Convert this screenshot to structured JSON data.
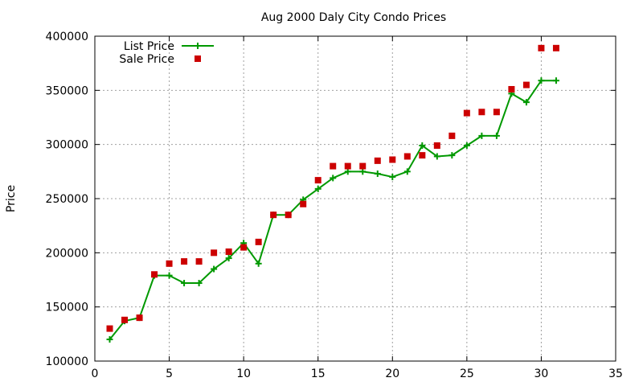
{
  "chart_data": {
    "type": "line",
    "title": "Aug 2000 Daly City Condo Prices",
    "xlabel": "",
    "ylabel": "Price",
    "xlim": [
      0,
      35
    ],
    "ylim": [
      100000,
      400000
    ],
    "xticks": [
      0,
      5,
      10,
      15,
      20,
      25,
      30,
      35
    ],
    "yticks": [
      100000,
      150000,
      200000,
      250000,
      300000,
      350000,
      400000
    ],
    "grid": true,
    "legend_position": "top-left",
    "series": [
      {
        "name": "List Price",
        "style": "line-with-plus-markers",
        "color": "#009900",
        "x": [
          1,
          2,
          3,
          4,
          5,
          6,
          7,
          8,
          9,
          10,
          11,
          12,
          13,
          14,
          15,
          16,
          17,
          18,
          19,
          20,
          21,
          22,
          23,
          24,
          25,
          26,
          27,
          28,
          29,
          30,
          31
        ],
        "values": [
          120000,
          137000,
          140000,
          179000,
          179000,
          172000,
          172000,
          185000,
          195000,
          209000,
          190000,
          235000,
          235000,
          249000,
          259000,
          269000,
          275000,
          275000,
          273000,
          270000,
          275000,
          299000,
          289000,
          290000,
          299000,
          308000,
          308000,
          347000,
          339000,
          359000,
          359000
        ]
      },
      {
        "name": "Sale Price",
        "style": "square-markers",
        "color": "#cc0000",
        "x": [
          1,
          2,
          3,
          4,
          5,
          6,
          7,
          8,
          9,
          10,
          11,
          12,
          13,
          14,
          15,
          16,
          17,
          18,
          19,
          20,
          21,
          22,
          23,
          24,
          25,
          26,
          27,
          28,
          29,
          30,
          31
        ],
        "values": [
          130000,
          138000,
          140000,
          180000,
          190000,
          192000,
          192000,
          200000,
          201000,
          205000,
          210000,
          235000,
          235000,
          245000,
          267000,
          280000,
          280000,
          280000,
          285000,
          286000,
          289000,
          290000,
          299000,
          308000,
          329000,
          330000,
          330000,
          351000,
          355000,
          389000,
          389000
        ]
      }
    ]
  }
}
